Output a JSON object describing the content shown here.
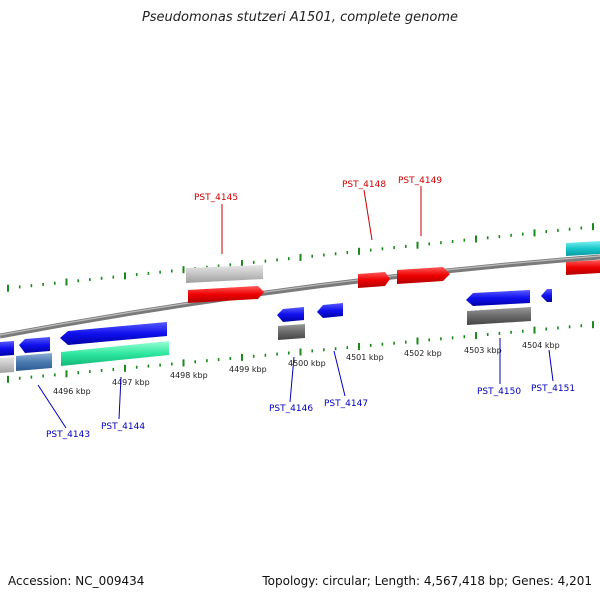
{
  "title": "Pseudomonas stutzeri A1501, complete genome",
  "footer": {
    "accession": "Accession: NC_009434",
    "summary": "Topology: circular; Length: 4,567,418 bp; Genes: 4,201"
  },
  "colors": {
    "backbone": "#888888",
    "tick": "#1a8a1a",
    "forward_label": "#cc0000",
    "reverse_label": "#0000bb"
  },
  "scale": {
    "ticks": [
      "4496 kbp",
      "4497 kbp",
      "4498 kbp",
      "4499 kbp",
      "4500 kbp",
      "4501 kbp",
      "4502 kbp",
      "4503 kbp",
      "4504 kbp"
    ]
  },
  "genes_forward": [
    {
      "id": "PST_4145",
      "label": "PST_4145"
    },
    {
      "id": "PST_4148",
      "label": "PST_4148"
    },
    {
      "id": "PST_4149",
      "label": "PST_4149"
    }
  ],
  "genes_reverse": [
    {
      "id": "PST_4143",
      "label": "PST_4143"
    },
    {
      "id": "PST_4144",
      "label": "PST_4144"
    },
    {
      "id": "PST_4146",
      "label": "PST_4146"
    },
    {
      "id": "PST_4147",
      "label": "PST_4147"
    },
    {
      "id": "PST_4150",
      "label": "PST_4150"
    },
    {
      "id": "PST_4151",
      "label": "PST_4151"
    }
  ]
}
